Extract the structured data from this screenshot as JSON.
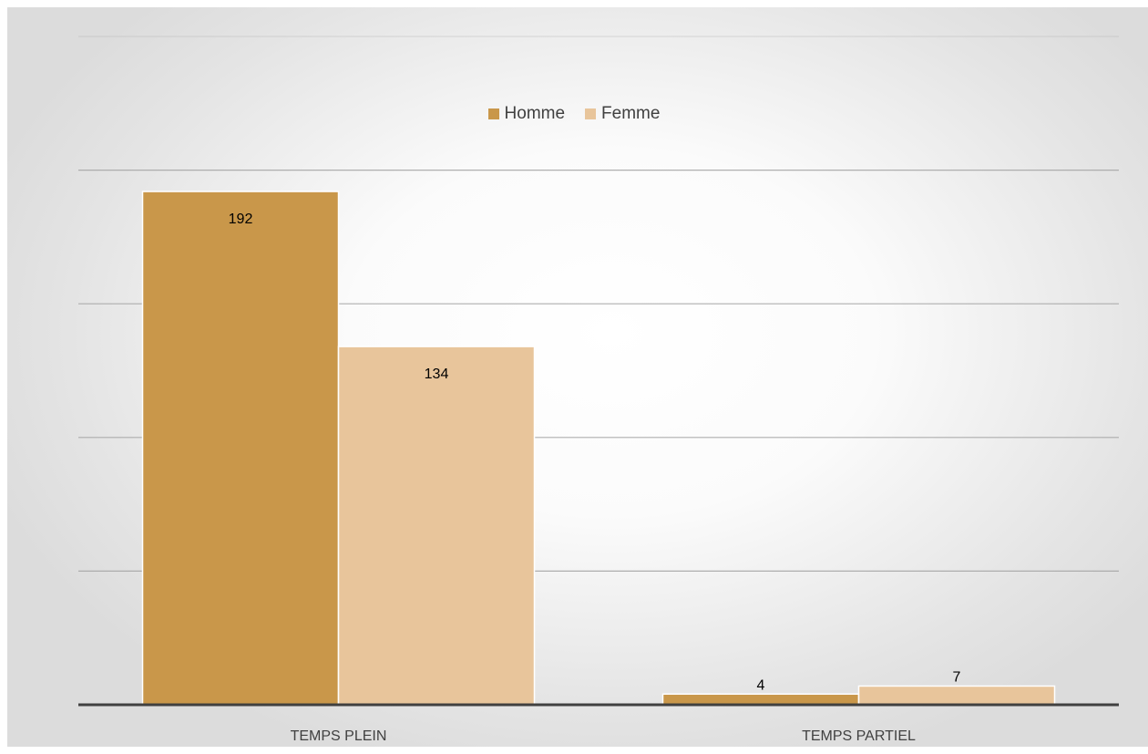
{
  "chart_data": {
    "type": "bar",
    "title": "",
    "xlabel": "",
    "ylabel": "",
    "categories": [
      "TEMPS PLEIN",
      "TEMPS PARTIEL"
    ],
    "series": [
      {
        "name": "Homme",
        "values": [
          192,
          4
        ],
        "color": "#c9974a"
      },
      {
        "name": "Femme",
        "values": [
          134,
          7
        ],
        "color": "#e8c59b"
      }
    ],
    "ylim": [
      0,
      250
    ],
    "grid": true,
    "legend": "top-center",
    "data_labels": true,
    "axis_color": "#404040",
    "gridline_color": "#a6a6a6"
  }
}
